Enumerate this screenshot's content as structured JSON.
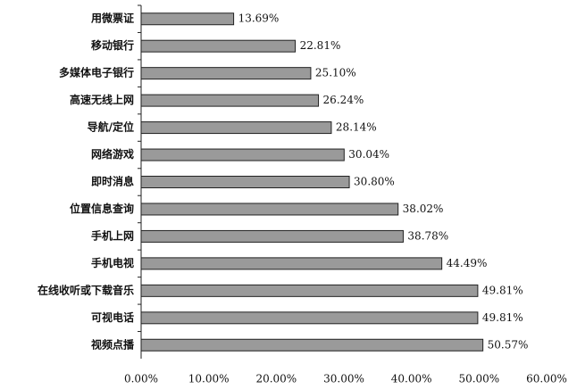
{
  "chart_data": {
    "type": "barh",
    "categories": [
      "用微票证",
      "移动银行",
      "多媒体电子银行",
      "高速无线上网",
      "导航/定位",
      "网络游戏",
      "即时消息",
      "位置信息查询",
      "手机上网",
      "手机电视",
      "在线收听或下载音乐",
      "可视电话",
      "视频点播"
    ],
    "values": [
      13.69,
      22.81,
      25.1,
      26.24,
      28.14,
      30.04,
      30.8,
      38.02,
      38.78,
      44.49,
      49.81,
      49.81,
      50.57
    ],
    "value_labels": [
      "13.69%",
      "22.81%",
      "25.10%",
      "26.24%",
      "28.14%",
      "30.04%",
      "30.80%",
      "38.02%",
      "38.78%",
      "44.49%",
      "49.81%",
      "49.81%",
      "50.57%"
    ],
    "color": "#9a9a9a",
    "xlim": [
      0,
      60
    ],
    "xticks": [
      {
        "value": 0,
        "label": "0.00%"
      },
      {
        "value": 10,
        "label": "10.00%"
      },
      {
        "value": 20,
        "label": "20.00%"
      },
      {
        "value": 30,
        "label": "30.00%"
      },
      {
        "value": 40,
        "label": "40.00%"
      },
      {
        "value": 50,
        "label": "50.00%"
      },
      {
        "value": 60,
        "label": "60.00%"
      }
    ],
    "grid": false
  }
}
